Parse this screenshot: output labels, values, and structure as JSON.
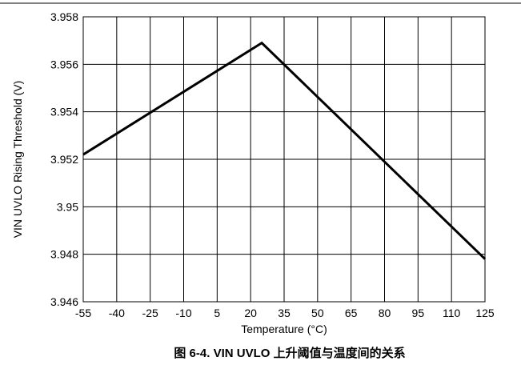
{
  "chart_data": {
    "type": "line",
    "caption": "图 6-4. VIN UVLO 上升阈值与温度间的关系",
    "xlabel": "Temperature (°C)",
    "ylabel": "VIN UVLO Rising Threshold (V)",
    "x_ticks": [
      "-55",
      "-40",
      "-25",
      "-10",
      "5",
      "20",
      "35",
      "50",
      "65",
      "80",
      "95",
      "110",
      "125"
    ],
    "y_ticks": [
      "3.946",
      "3.948",
      "3.95",
      "3.952",
      "3.954",
      "3.956",
      "3.958"
    ],
    "xlim": [
      -55,
      125
    ],
    "ylim": [
      3.946,
      3.958
    ],
    "grid": true,
    "series": [
      {
        "x": [
          -55,
          25,
          125
        ],
        "y": [
          3.9522,
          3.9569,
          3.9478
        ]
      }
    ]
  }
}
